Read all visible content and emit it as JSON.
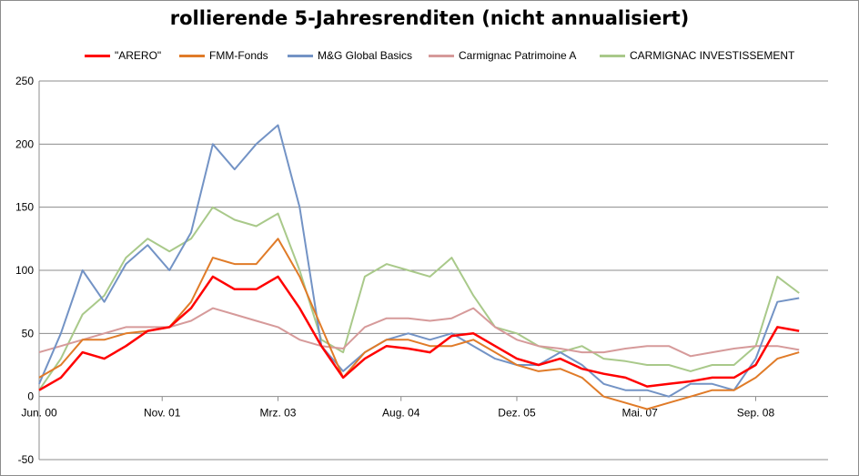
{
  "chart_data": {
    "type": "line",
    "title": "rollierende 5-Jahresrenditen (nicht annualisiert)",
    "xlabel": "",
    "ylabel": "",
    "ylim": [
      -50,
      250
    ],
    "y_ticks": [
      "250",
      "200",
      "150",
      "100",
      "50",
      "0",
      "-50"
    ],
    "x_ticks": [
      "Jun. 00",
      "Nov. 01",
      "Mrz. 03",
      "Aug. 04",
      "Dez. 05",
      "Mai. 07",
      "Sep. 08"
    ],
    "x_range": [
      "2000-06",
      "2009-07"
    ],
    "grid": "horizontal",
    "legend": "top",
    "x": [
      "2000-06",
      "2000-09",
      "2000-12",
      "2001-03",
      "2001-06",
      "2001-09",
      "2001-12",
      "2002-03",
      "2002-06",
      "2002-09",
      "2002-12",
      "2003-03",
      "2003-06",
      "2003-09",
      "2003-12",
      "2004-03",
      "2004-06",
      "2004-09",
      "2004-12",
      "2005-03",
      "2005-06",
      "2005-09",
      "2005-12",
      "2006-03",
      "2006-06",
      "2006-09",
      "2006-12",
      "2007-03",
      "2007-06",
      "2007-09",
      "2007-12",
      "2008-03",
      "2008-06",
      "2008-09",
      "2008-12",
      "2009-03"
    ],
    "series": [
      {
        "name": "\"ARERO\"",
        "color": "#ff0000",
        "values": [
          5,
          15,
          35,
          30,
          40,
          52,
          55,
          70,
          95,
          85,
          85,
          95,
          70,
          40,
          15,
          30,
          40,
          38,
          35,
          48,
          50,
          40,
          30,
          25,
          30,
          22,
          18,
          15,
          8,
          10,
          12,
          15,
          15,
          25,
          55,
          52
        ]
      },
      {
        "name": "FMM-Fonds",
        "color": "#e07b28",
        "values": [
          15,
          25,
          45,
          45,
          50,
          52,
          55,
          75,
          110,
          105,
          105,
          125,
          95,
          55,
          15,
          35,
          45,
          45,
          40,
          40,
          45,
          35,
          25,
          20,
          22,
          15,
          0,
          -5,
          -10,
          -5,
          0,
          5,
          5,
          15,
          30,
          35
        ]
      },
      {
        "name": "M&G Global Basics",
        "color": "#7393c5",
        "values": [
          10,
          50,
          100,
          75,
          105,
          120,
          100,
          130,
          200,
          180,
          200,
          215,
          150,
          40,
          20,
          35,
          45,
          50,
          45,
          50,
          40,
          30,
          25,
          25,
          35,
          25,
          10,
          5,
          5,
          0,
          10,
          10,
          5,
          30,
          75,
          78
        ]
      },
      {
        "name": "Carmignac Patrimoine A",
        "color": "#d69a9a",
        "values": [
          35,
          40,
          45,
          50,
          55,
          55,
          55,
          60,
          70,
          65,
          60,
          55,
          45,
          40,
          38,
          55,
          62,
          62,
          60,
          62,
          70,
          55,
          45,
          40,
          38,
          35,
          35,
          38,
          40,
          40,
          32,
          35,
          38,
          40,
          40,
          37
        ]
      },
      {
        "name": "CARMIGNAC INVESTISSEMENT",
        "color": "#a9c98a",
        "values": [
          5,
          30,
          65,
          80,
          110,
          125,
          115,
          125,
          150,
          140,
          135,
          145,
          100,
          45,
          35,
          95,
          105,
          100,
          95,
          110,
          80,
          55,
          50,
          40,
          35,
          40,
          30,
          28,
          25,
          25,
          20,
          25,
          25,
          40,
          95,
          82
        ]
      }
    ]
  }
}
